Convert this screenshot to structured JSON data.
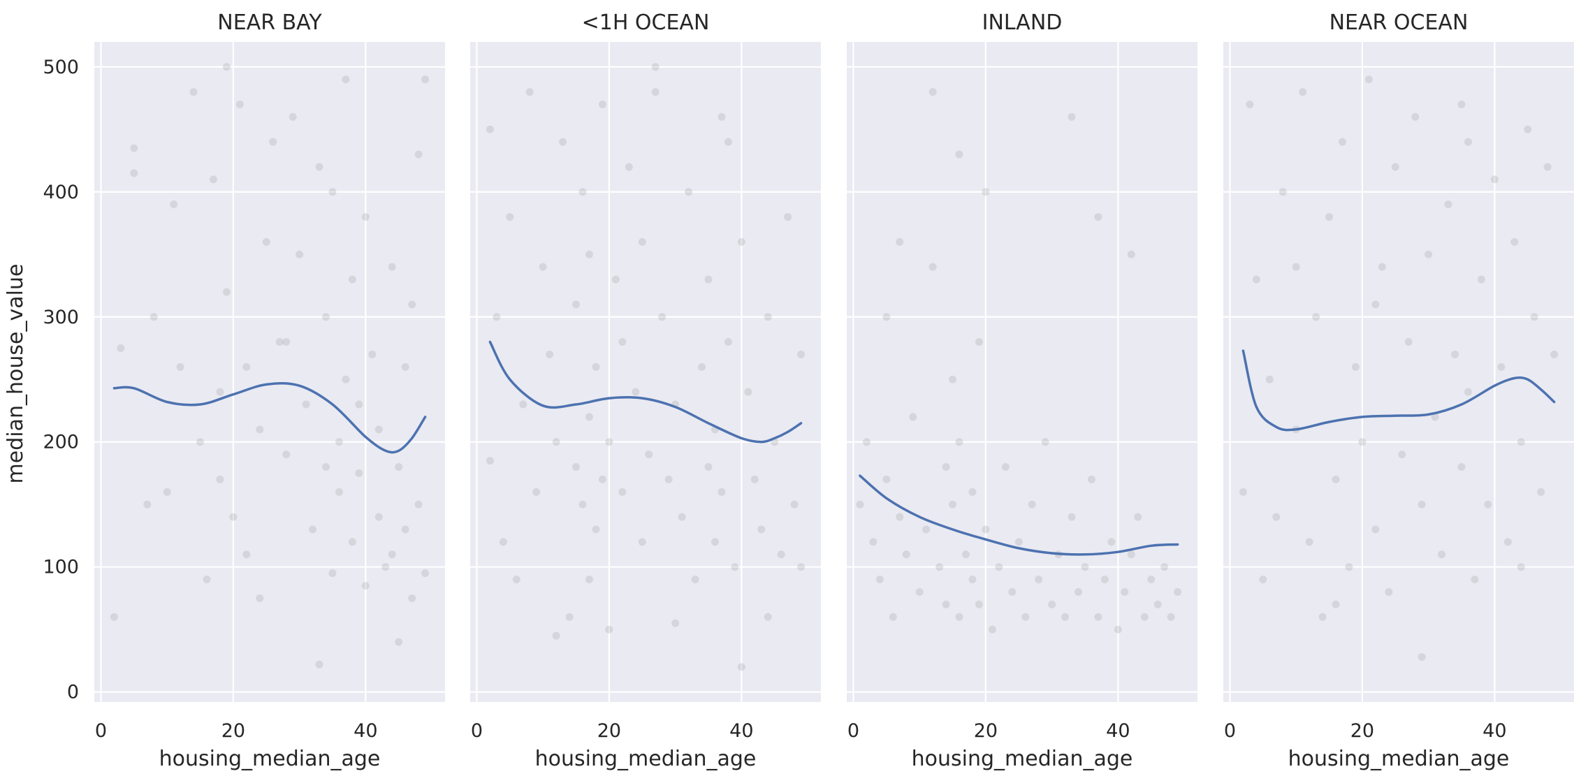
{
  "figure": {
    "ylabel": "median_house_value",
    "xlabel": "housing_median_age"
  },
  "style": {
    "panel_background": "#eaeaf2",
    "point_color": "#8c8c8c",
    "point_opacity": 0.22,
    "trend_color": "#4c72b0"
  },
  "chart_data": {
    "type": "scatter",
    "layout": "faceted, 4 columns, shared y-axis",
    "grid": true,
    "xlim": [
      -1,
      52
    ],
    "ylim": [
      -8,
      520
    ],
    "x_ticks": [
      0,
      20,
      40
    ],
    "y_ticks": [
      0,
      100,
      200,
      300,
      400,
      500
    ],
    "x_tick_labels": [
      "0",
      "20",
      "40"
    ],
    "y_tick_labels": [
      "0",
      "100",
      "200",
      "300",
      "400",
      "500"
    ],
    "xlabel": "housing_median_age",
    "ylabel": "median_house_value",
    "panels": [
      {
        "title": "NEAR BAY",
        "trend": {
          "x": [
            2,
            5,
            10,
            15,
            20,
            25,
            30,
            35,
            40,
            43,
            45,
            47,
            49
          ],
          "y": [
            243,
            243,
            232,
            230,
            238,
            246,
            245,
            230,
            204,
            193,
            193,
            203,
            220
          ]
        },
        "points": {
          "x": [
            2,
            3,
            5,
            5,
            8,
            10,
            12,
            14,
            15,
            16,
            17,
            18,
            18,
            19,
            20,
            21,
            22,
            22,
            24,
            25,
            26,
            27,
            28,
            29,
            30,
            31,
            32,
            33,
            34,
            34,
            35,
            35,
            36,
            36,
            37,
            37,
            38,
            38,
            39,
            40,
            40,
            41,
            42,
            42,
            43,
            44,
            45,
            45,
            46,
            46,
            47,
            47,
            48,
            48,
            49,
            49,
            33,
            19,
            24,
            44,
            11,
            7,
            28,
            39
          ],
          "y": [
            60,
            275,
            435,
            415,
            300,
            160,
            260,
            480,
            200,
            90,
            410,
            170,
            240,
            320,
            140,
            470,
            260,
            110,
            210,
            360,
            440,
            280,
            190,
            460,
            350,
            230,
            130,
            420,
            180,
            300,
            95,
            400,
            200,
            160,
            490,
            250,
            120,
            330,
            175,
            380,
            85,
            270,
            140,
            210,
            100,
            340,
            40,
            180,
            130,
            260,
            75,
            310,
            150,
            430,
            95,
            490,
            22,
            500,
            75,
            110,
            390,
            150,
            280,
            230
          ]
        }
      },
      {
        "title": "<1H OCEAN",
        "trend": {
          "x": [
            2,
            5,
            10,
            15,
            20,
            25,
            30,
            35,
            40,
            43,
            45,
            47,
            49
          ],
          "y": [
            280,
            250,
            229,
            230,
            235,
            235,
            228,
            215,
            203,
            200,
            203,
            208,
            215
          ]
        },
        "points": {
          "x": [
            2,
            2,
            3,
            4,
            5,
            6,
            7,
            8,
            9,
            10,
            11,
            12,
            13,
            14,
            15,
            15,
            16,
            16,
            17,
            17,
            18,
            18,
            19,
            19,
            20,
            20,
            21,
            22,
            22,
            23,
            24,
            25,
            25,
            26,
            27,
            28,
            29,
            30,
            31,
            32,
            33,
            34,
            35,
            35,
            36,
            36,
            37,
            37,
            38,
            39,
            40,
            40,
            41,
            42,
            43,
            44,
            45,
            46,
            47,
            48,
            49,
            49,
            12,
            30,
            38,
            17,
            27,
            44
          ],
          "y": [
            185,
            450,
            300,
            120,
            380,
            90,
            230,
            480,
            160,
            340,
            270,
            200,
            440,
            60,
            180,
            310,
            150,
            400,
            220,
            350,
            130,
            260,
            170,
            470,
            50,
            200,
            330,
            160,
            280,
            420,
            240,
            120,
            360,
            190,
            500,
            300,
            170,
            230,
            140,
            400,
            90,
            260,
            180,
            330,
            120,
            210,
            460,
            160,
            280,
            100,
            20,
            360,
            240,
            170,
            130,
            300,
            200,
            110,
            380,
            150,
            100,
            270,
            45,
            55,
            440,
            90,
            480,
            60
          ]
        }
      },
      {
        "title": "INLAND",
        "trend": {
          "x": [
            1,
            5,
            10,
            15,
            20,
            25,
            30,
            35,
            40,
            45,
            49
          ],
          "y": [
            173,
            155,
            140,
            130,
            122,
            115,
            111,
            110,
            112,
            117,
            118
          ]
        },
        "points": {
          "x": [
            1,
            2,
            3,
            4,
            5,
            5,
            6,
            7,
            8,
            9,
            10,
            11,
            12,
            13,
            14,
            14,
            15,
            15,
            16,
            16,
            17,
            18,
            18,
            19,
            19,
            20,
            21,
            22,
            23,
            24,
            25,
            26,
            27,
            28,
            29,
            30,
            31,
            32,
            33,
            34,
            35,
            36,
            37,
            38,
            39,
            40,
            41,
            42,
            43,
            44,
            45,
            46,
            47,
            48,
            49,
            12,
            16,
            20,
            33,
            37,
            42,
            7
          ],
          "y": [
            150,
            200,
            120,
            90,
            170,
            300,
            60,
            140,
            110,
            220,
            80,
            130,
            340,
            100,
            70,
            180,
            150,
            250,
            60,
            200,
            110,
            90,
            160,
            70,
            280,
            130,
            50,
            100,
            180,
            80,
            120,
            60,
            150,
            90,
            200,
            70,
            110,
            60,
            140,
            80,
            100,
            170,
            60,
            90,
            120,
            50,
            80,
            110,
            140,
            60,
            90,
            70,
            100,
            60,
            80,
            480,
            430,
            400,
            460,
            380,
            350,
            360
          ]
        }
      },
      {
        "title": "NEAR OCEAN",
        "trend": {
          "x": [
            2,
            4,
            7,
            10,
            15,
            20,
            25,
            30,
            35,
            40,
            43,
            45,
            47,
            49
          ],
          "y": [
            273,
            228,
            212,
            210,
            216,
            220,
            221,
            222,
            230,
            245,
            251,
            250,
            242,
            232
          ]
        },
        "points": {
          "x": [
            2,
            3,
            4,
            5,
            6,
            7,
            8,
            10,
            11,
            12,
            13,
            14,
            15,
            16,
            17,
            18,
            19,
            20,
            21,
            22,
            23,
            24,
            25,
            26,
            27,
            28,
            29,
            30,
            31,
            32,
            33,
            34,
            35,
            35,
            36,
            37,
            38,
            39,
            40,
            41,
            42,
            43,
            44,
            45,
            46,
            47,
            48,
            49,
            10,
            22,
            29,
            44,
            16,
            36
          ],
          "y": [
            160,
            470,
            330,
            90,
            250,
            140,
            400,
            210,
            480,
            120,
            300,
            60,
            380,
            170,
            440,
            100,
            260,
            200,
            490,
            130,
            340,
            80,
            420,
            190,
            280,
            460,
            150,
            350,
            220,
            110,
            390,
            270,
            180,
            470,
            240,
            90,
            330,
            150,
            410,
            260,
            120,
            360,
            200,
            450,
            300,
            160,
            420,
            270,
            340,
            310,
            28,
            100,
            70,
            440
          ]
        }
      }
    ]
  }
}
